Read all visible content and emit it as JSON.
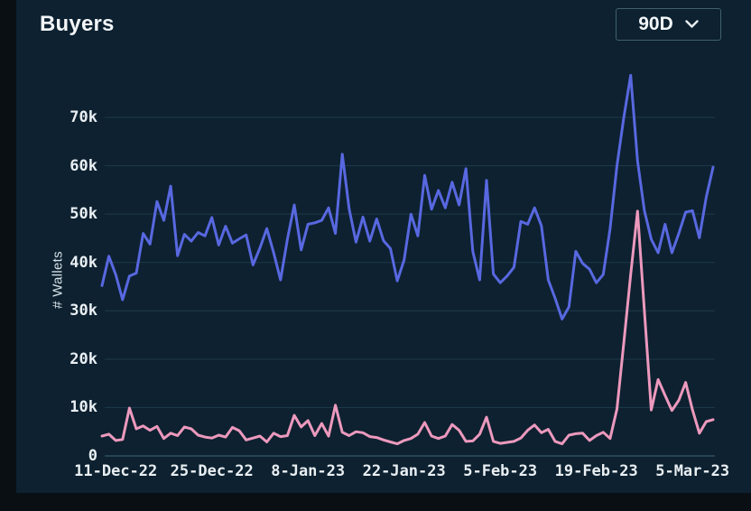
{
  "header": {
    "title": "Buyers",
    "range_selector": {
      "value": "90D",
      "icon": "chevron-down"
    }
  },
  "colors": {
    "page_bg": "#0a0f14",
    "card_bg": "#0d2130",
    "grid": "#1f3b4b",
    "axis_line": "#2f4f62",
    "text_primary": "#f2f6f8",
    "text_axis": "#e9eff3",
    "series_blue": "#5868e0",
    "series_pink": "#ec99bd"
  },
  "chart_data": {
    "type": "line",
    "title": "Buyers",
    "xlabel": "",
    "ylabel": "# Wallets",
    "ylim": [
      0,
      80000
    ],
    "grid": "horizontal",
    "legend": "none",
    "y_ticks": [
      0,
      10000,
      20000,
      30000,
      40000,
      50000,
      60000,
      70000
    ],
    "y_tick_labels": [
      "0",
      "10k",
      "20k",
      "30k",
      "40k",
      "50k",
      "60k",
      "70k"
    ],
    "x_tick_labels": [
      "11-Dec-22",
      "25-Dec-22",
      "8-Jan-23",
      "22-Jan-23",
      "5-Feb-23",
      "19-Feb-23",
      "5-Mar-23"
    ],
    "x_tick_indices": [
      2,
      16,
      30,
      44,
      58,
      72,
      86
    ],
    "series": [
      {
        "name": "blue-series",
        "color": "#5868e0",
        "values": [
          35200,
          41300,
          37500,
          32300,
          37200,
          37800,
          46000,
          43800,
          52600,
          48700,
          55800,
          41400,
          45800,
          44400,
          46200,
          45500,
          49300,
          43600,
          47500,
          44000,
          44900,
          45700,
          39500,
          43000,
          47000,
          42000,
          36400,
          44800,
          51900,
          42600,
          47900,
          48200,
          48700,
          51300,
          46000,
          62400,
          51100,
          44200,
          49400,
          44400,
          49000,
          44500,
          42900,
          36200,
          40500,
          50000,
          45500,
          58000,
          51000,
          54900,
          51300,
          56600,
          51900,
          59400,
          42300,
          36400,
          57000,
          37600,
          35800,
          37200,
          39000,
          48500,
          47900,
          51300,
          47600,
          36400,
          32600,
          28300,
          30800,
          42300,
          39800,
          38600,
          35800,
          37500,
          47000,
          60000,
          70000,
          78700,
          61000,
          50700,
          44800,
          42000,
          47900,
          42000,
          46000,
          50400,
          50700,
          45100,
          53500,
          59700
        ]
      },
      {
        "name": "pink-series",
        "color": "#ec99bd",
        "values": [
          4100,
          4500,
          3200,
          3400,
          9900,
          5600,
          6200,
          5300,
          6100,
          3600,
          4700,
          4200,
          6000,
          5600,
          4300,
          3900,
          3700,
          4300,
          3900,
          5900,
          5200,
          3300,
          3700,
          4100,
          2900,
          4700,
          4000,
          4200,
          8400,
          6000,
          7300,
          4200,
          6700,
          4100,
          10500,
          4900,
          4200,
          5000,
          4800,
          4000,
          3800,
          3300,
          2900,
          2500,
          3200,
          3600,
          4500,
          6900,
          4100,
          3600,
          4100,
          6500,
          5300,
          3000,
          3100,
          4500,
          8000,
          3000,
          2600,
          2800,
          3000,
          3700,
          5300,
          6400,
          4800,
          5500,
          3000,
          2500,
          4300,
          4600,
          4700,
          3200,
          4200,
          4900,
          3600,
          9700,
          23400,
          37500,
          50600,
          30000,
          9500,
          15800,
          12500,
          9400,
          11500,
          15200,
          9500,
          4700,
          7100,
          7500
        ]
      }
    ]
  }
}
